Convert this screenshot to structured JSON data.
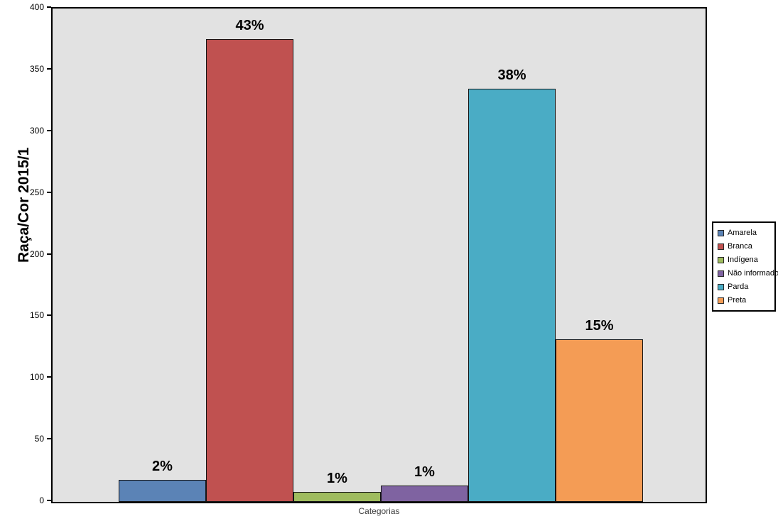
{
  "chart_data": {
    "type": "bar",
    "title": "",
    "ylabel": "Raça/Cor 2015/1",
    "xlabel": "Categorias",
    "ylim": [
      0,
      400
    ],
    "yticks": [
      0,
      50,
      100,
      150,
      200,
      250,
      300,
      350,
      400
    ],
    "grid": false,
    "legend_position": "right-outside",
    "plot_background": "#E2E2E2",
    "categories": [
      "Categorias"
    ],
    "series": [
      {
        "name": "Amarela",
        "value": 18,
        "percent_label": "2%",
        "color": "#5B83B6"
      },
      {
        "name": "Branca",
        "value": 375,
        "percent_label": "43%",
        "color": "#C05150"
      },
      {
        "name": "Indígena",
        "value": 8,
        "percent_label": "1%",
        "color": "#9FBC5E"
      },
      {
        "name": "Não informado",
        "value": 13,
        "percent_label": "1%",
        "color": "#7F63A1"
      },
      {
        "name": "Parda",
        "value": 335,
        "percent_label": "38%",
        "color": "#4AACC5"
      },
      {
        "name": "Preta",
        "value": 132,
        "percent_label": "15%",
        "color": "#F49C55"
      }
    ]
  }
}
